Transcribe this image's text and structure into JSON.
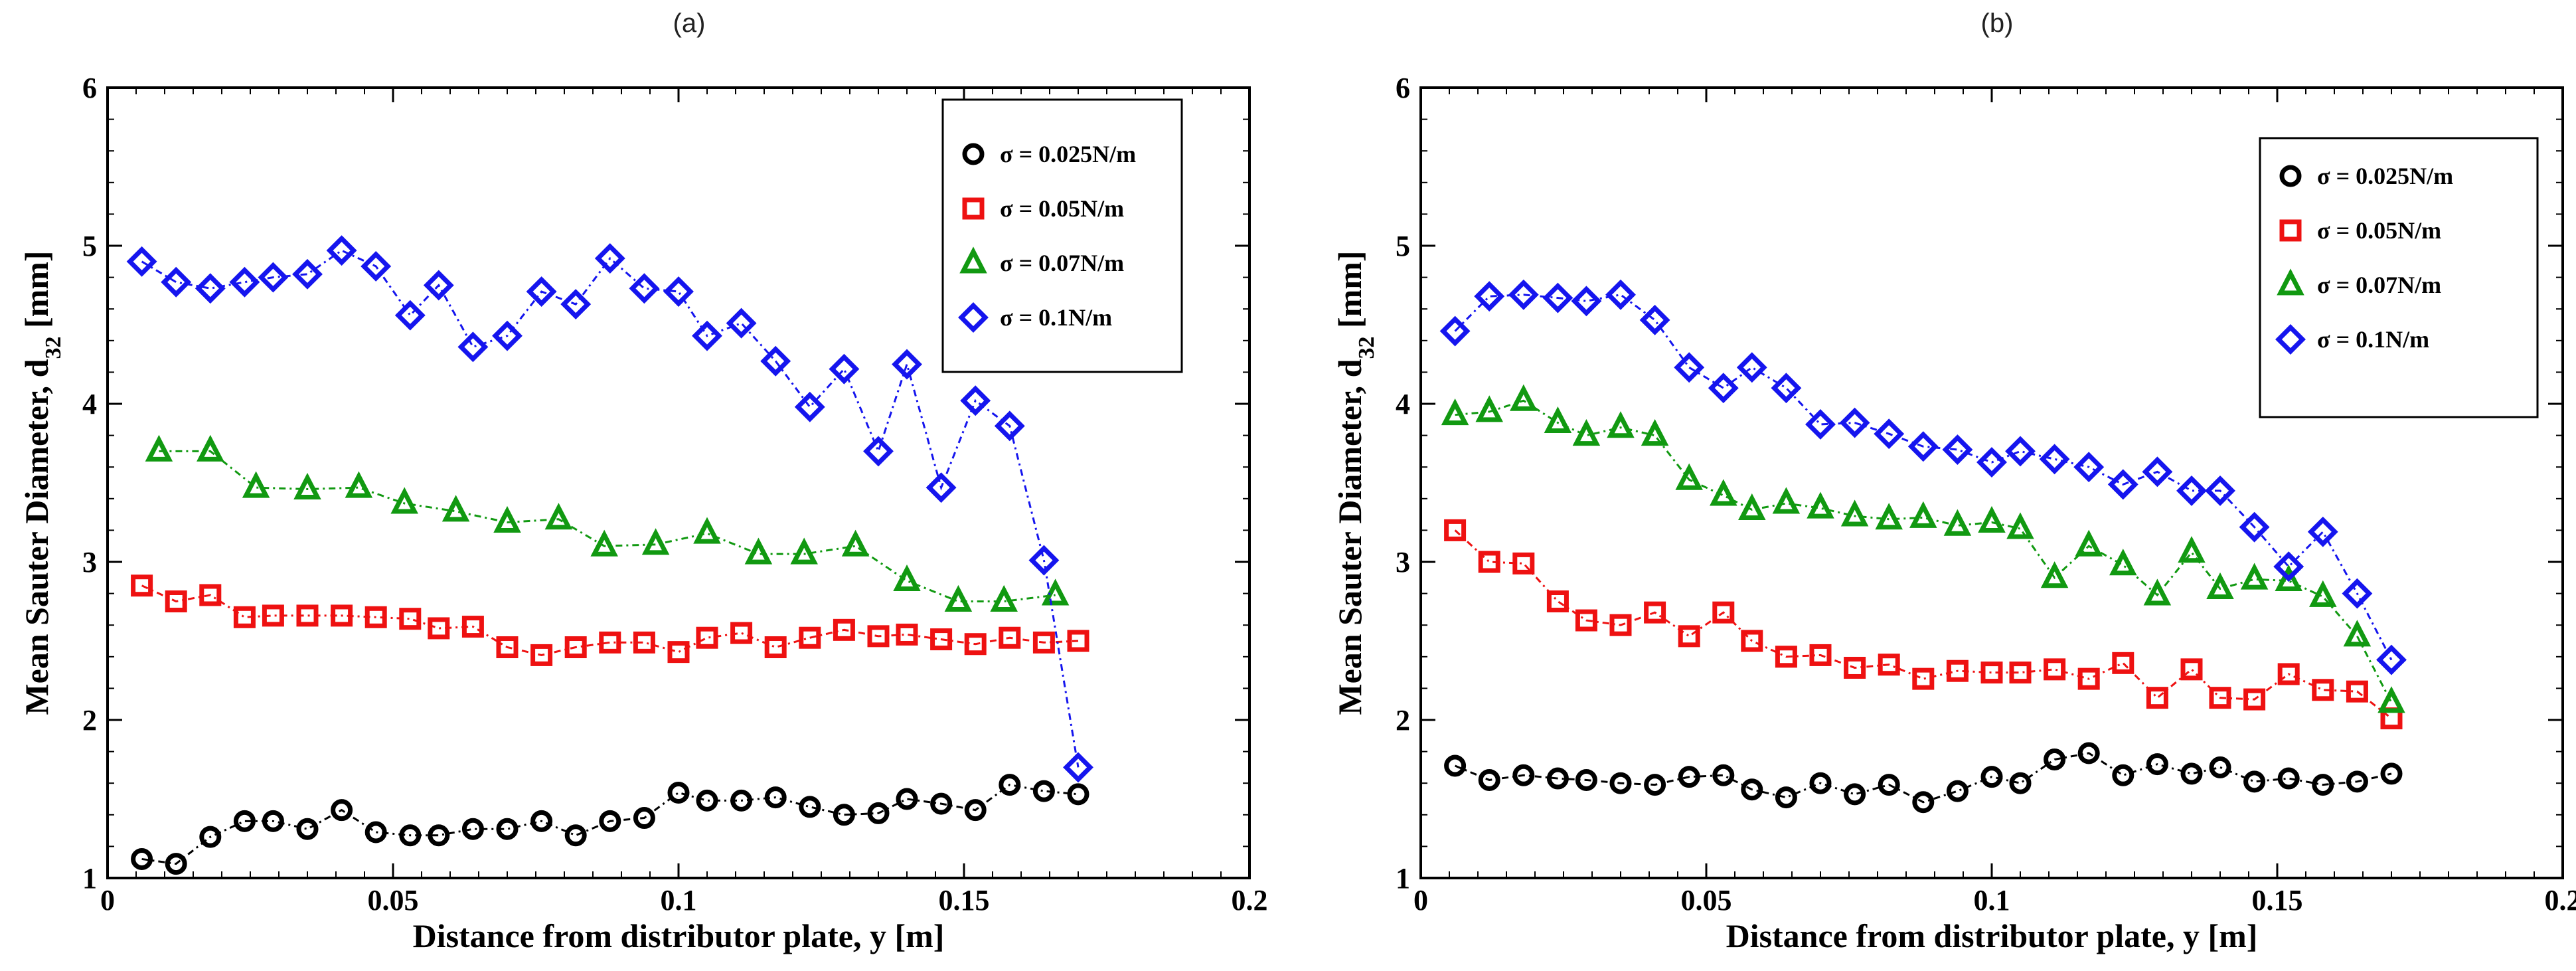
{
  "chart_data": [
    {
      "type": "scatter",
      "panel_label": "(a)",
      "xlabel": "Distance from distributor plate, y [m]",
      "ylabel": "Mean Sauter Diameter, d",
      "ylabel_sub": "32",
      "ylabel_unit": " [mm]",
      "xlim": [
        0,
        0.2
      ],
      "ylim": [
        1,
        6
      ],
      "xticks": [
        "0",
        "0.05",
        "0.1",
        "0.15",
        "0.2"
      ],
      "yticks": [
        "1",
        "2",
        "3",
        "4",
        "5",
        "6"
      ],
      "legend_position": "top-right",
      "series": [
        {
          "name": "σ = 0.025N/m",
          "marker": "circle",
          "color": "#000000",
          "x": [
            0.006,
            0.012,
            0.018,
            0.024,
            0.029,
            0.035,
            0.041,
            0.047,
            0.053,
            0.058,
            0.064,
            0.07,
            0.076,
            0.082,
            0.088,
            0.094,
            0.1,
            0.105,
            0.111,
            0.117,
            0.123,
            0.129,
            0.135,
            0.14,
            0.146,
            0.152,
            0.158,
            0.164,
            0.17
          ],
          "y": [
            1.12,
            1.09,
            1.26,
            1.36,
            1.36,
            1.31,
            1.43,
            1.29,
            1.27,
            1.27,
            1.31,
            1.31,
            1.36,
            1.27,
            1.36,
            1.38,
            1.54,
            1.49,
            1.49,
            1.51,
            1.45,
            1.4,
            1.41,
            1.5,
            1.47,
            1.43,
            1.59,
            1.55,
            1.53
          ]
        },
        {
          "name": "σ = 0.05N/m",
          "marker": "square",
          "color": "#ee1111",
          "x": [
            0.006,
            0.012,
            0.018,
            0.024,
            0.029,
            0.035,
            0.041,
            0.047,
            0.053,
            0.058,
            0.064,
            0.07,
            0.076,
            0.082,
            0.088,
            0.094,
            0.1,
            0.105,
            0.111,
            0.117,
            0.123,
            0.129,
            0.135,
            0.14,
            0.146,
            0.152,
            0.158,
            0.164,
            0.17
          ],
          "y": [
            2.85,
            2.75,
            2.79,
            2.65,
            2.66,
            2.66,
            2.66,
            2.65,
            2.64,
            2.58,
            2.59,
            2.46,
            2.41,
            2.46,
            2.49,
            2.49,
            2.43,
            2.52,
            2.55,
            2.46,
            2.52,
            2.57,
            2.53,
            2.54,
            2.51,
            2.48,
            2.52,
            2.49,
            2.5
          ]
        },
        {
          "name": "σ = 0.07N/m",
          "marker": "triangle",
          "color": "#119911",
          "x": [
            0.009,
            0.018,
            0.026,
            0.035,
            0.044,
            0.052,
            0.061,
            0.07,
            0.079,
            0.087,
            0.096,
            0.105,
            0.114,
            0.122,
            0.131,
            0.14,
            0.149,
            0.157,
            0.166
          ],
          "y": [
            3.7,
            3.7,
            3.47,
            3.46,
            3.47,
            3.37,
            3.32,
            3.25,
            3.27,
            3.1,
            3.11,
            3.18,
            3.05,
            3.05,
            3.1,
            2.88,
            2.75,
            2.75,
            2.79
          ]
        },
        {
          "name": "σ = 0.1N/m",
          "marker": "diamond",
          "color": "#1515ee",
          "x": [
            0.006,
            0.012,
            0.018,
            0.024,
            0.029,
            0.035,
            0.041,
            0.047,
            0.053,
            0.058,
            0.064,
            0.07,
            0.076,
            0.082,
            0.088,
            0.094,
            0.1,
            0.105,
            0.111,
            0.117,
            0.123,
            0.129,
            0.135,
            0.14,
            0.146,
            0.152,
            0.158,
            0.164,
            0.17
          ],
          "y": [
            4.9,
            4.77,
            4.73,
            4.77,
            4.8,
            4.82,
            4.97,
            4.87,
            4.56,
            4.75,
            4.36,
            4.43,
            4.71,
            4.63,
            4.92,
            4.73,
            4.71,
            4.43,
            4.51,
            4.27,
            3.98,
            4.22,
            3.7,
            4.25,
            3.47,
            4.02,
            3.86,
            3.01,
            1.7
          ]
        }
      ]
    },
    {
      "type": "scatter",
      "panel_label": "(b)",
      "xlabel": "Distance from distributor plate, y [m]",
      "ylabel": "Mean Sauter Diameter, d",
      "ylabel_sub": "32",
      "ylabel_unit": " [mm]",
      "xlim": [
        0,
        0.2
      ],
      "ylim": [
        1,
        6
      ],
      "xticks": [
        "0",
        "0.05",
        "0.1",
        "0.15",
        "0.2"
      ],
      "yticks": [
        "1",
        "2",
        "3",
        "4",
        "5",
        "6"
      ],
      "legend_position": "top-right",
      "series": [
        {
          "name": "σ = 0.025N/m",
          "marker": "circle",
          "color": "#000000",
          "x": [
            0.006,
            0.012,
            0.018,
            0.024,
            0.029,
            0.035,
            0.041,
            0.047,
            0.053,
            0.058,
            0.064,
            0.07,
            0.076,
            0.082,
            0.088,
            0.094,
            0.1,
            0.105,
            0.111,
            0.117,
            0.123,
            0.129,
            0.135,
            0.14,
            0.146,
            0.152,
            0.158,
            0.164,
            0.17
          ],
          "y": [
            1.71,
            1.62,
            1.65,
            1.63,
            1.62,
            1.6,
            1.59,
            1.64,
            1.65,
            1.56,
            1.51,
            1.6,
            1.53,
            1.59,
            1.48,
            1.55,
            1.64,
            1.6,
            1.75,
            1.79,
            1.65,
            1.72,
            1.66,
            1.7,
            1.61,
            1.63,
            1.59,
            1.61,
            1.66
          ]
        },
        {
          "name": "σ = 0.05N/m",
          "marker": "square",
          "color": "#ee1111",
          "x": [
            0.006,
            0.012,
            0.018,
            0.024,
            0.029,
            0.035,
            0.041,
            0.047,
            0.053,
            0.058,
            0.064,
            0.07,
            0.076,
            0.082,
            0.088,
            0.094,
            0.1,
            0.105,
            0.111,
            0.117,
            0.123,
            0.129,
            0.135,
            0.14,
            0.146,
            0.152,
            0.158,
            0.164,
            0.17
          ],
          "y": [
            3.2,
            3.0,
            2.99,
            2.75,
            2.63,
            2.6,
            2.68,
            2.53,
            2.68,
            2.5,
            2.4,
            2.41,
            2.33,
            2.35,
            2.26,
            2.31,
            2.3,
            2.3,
            2.32,
            2.26,
            2.36,
            2.14,
            2.32,
            2.14,
            2.13,
            2.29,
            2.19,
            2.18,
            2.01
          ]
        },
        {
          "name": "σ = 0.07N/m",
          "marker": "triangle",
          "color": "#119911",
          "x": [
            0.006,
            0.012,
            0.018,
            0.024,
            0.029,
            0.035,
            0.041,
            0.047,
            0.053,
            0.058,
            0.064,
            0.07,
            0.076,
            0.082,
            0.088,
            0.094,
            0.1,
            0.105,
            0.111,
            0.117,
            0.123,
            0.129,
            0.135,
            0.14,
            0.146,
            0.152,
            0.158,
            0.164,
            0.17
          ],
          "y": [
            3.93,
            3.95,
            4.02,
            3.88,
            3.8,
            3.85,
            3.8,
            3.52,
            3.42,
            3.33,
            3.37,
            3.34,
            3.29,
            3.27,
            3.28,
            3.23,
            3.25,
            3.21,
            2.9,
            3.1,
            2.98,
            2.79,
            3.06,
            2.83,
            2.89,
            2.88,
            2.78,
            2.53,
            2.11
          ]
        },
        {
          "name": "σ = 0.1N/m",
          "marker": "diamond",
          "color": "#1515ee",
          "x": [
            0.006,
            0.012,
            0.018,
            0.024,
            0.029,
            0.035,
            0.041,
            0.047,
            0.053,
            0.058,
            0.064,
            0.07,
            0.076,
            0.082,
            0.088,
            0.094,
            0.1,
            0.105,
            0.111,
            0.117,
            0.123,
            0.129,
            0.135,
            0.14,
            0.146,
            0.152,
            0.158,
            0.164,
            0.17
          ],
          "y": [
            4.46,
            4.68,
            4.69,
            4.67,
            4.65,
            4.69,
            4.53,
            4.23,
            4.1,
            4.23,
            4.1,
            3.87,
            3.88,
            3.81,
            3.73,
            3.71,
            3.63,
            3.7,
            3.65,
            3.6,
            3.49,
            3.57,
            3.45,
            3.45,
            3.22,
            2.97,
            3.19,
            2.8,
            2.38
          ]
        }
      ]
    }
  ]
}
